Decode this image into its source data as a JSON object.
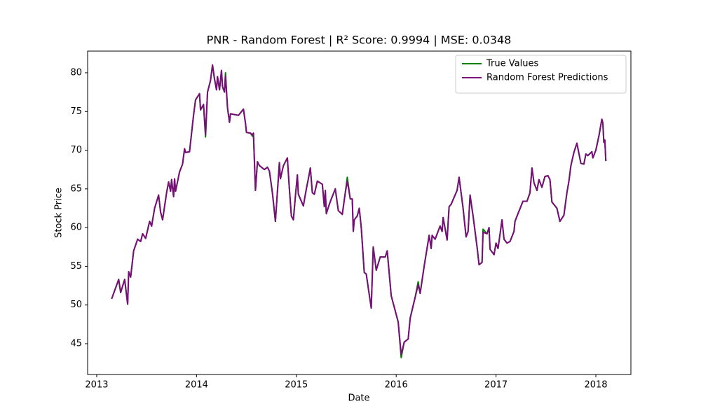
{
  "chart_data": {
    "type": "line",
    "title": "PNR - Random Forest | R² Score: 0.9994 | MSE: 0.0348",
    "x_label": "Date",
    "y_label": "Stock Price",
    "x": [
      2013.15,
      2013.22,
      2013.24,
      2013.28,
      2013.31,
      2013.32,
      2013.34,
      2013.37,
      2013.41,
      2013.44,
      2013.46,
      2013.49,
      2013.53,
      2013.55,
      2013.58,
      2013.62,
      2013.64,
      2013.66,
      2013.7,
      2013.72,
      2013.74,
      2013.75,
      2013.77,
      2013.78,
      2013.79,
      2013.83,
      2013.86,
      2013.88,
      2013.89,
      2013.93,
      2013.94,
      2013.97,
      2013.99,
      2014.03,
      2014.04,
      2014.07,
      2014.09,
      2014.11,
      2014.14,
      2014.16,
      2014.18,
      2014.2,
      2014.21,
      2014.23,
      2014.25,
      2014.26,
      2014.28,
      2014.29,
      2014.31,
      2014.33,
      2014.34,
      2014.42,
      2014.47,
      2014.49,
      2014.5,
      2014.54,
      2014.56,
      2014.57,
      2014.59,
      2014.61,
      2014.63,
      2014.68,
      2014.71,
      2014.73,
      2014.76,
      2014.79,
      2014.83,
      2014.84,
      2014.87,
      2014.91,
      2014.93,
      2014.95,
      2014.97,
      2014.99,
      2015.01,
      2015.02,
      2015.07,
      2015.1,
      2015.12,
      2015.14,
      2015.16,
      2015.18,
      2015.21,
      2015.26,
      2015.28,
      2015.29,
      2015.3,
      2015.33,
      2015.35,
      2015.39,
      2015.42,
      2015.46,
      2015.49,
      2015.51,
      2015.54,
      2015.56,
      2015.57,
      2015.58,
      2015.61,
      2015.63,
      2015.65,
      2015.68,
      2015.7,
      2015.75,
      2015.77,
      2015.8,
      2015.84,
      2015.89,
      2015.91,
      2015.95,
      2016.02,
      2016.05,
      2016.08,
      2016.12,
      2016.14,
      2016.19,
      2016.22,
      2016.24,
      2016.28,
      2016.33,
      2016.35,
      2016.36,
      2016.39,
      2016.44,
      2016.46,
      2016.47,
      2016.51,
      2016.53,
      2016.55,
      2016.61,
      2016.63,
      2016.67,
      2016.7,
      2016.72,
      2016.74,
      2016.77,
      2016.81,
      2016.83,
      2016.86,
      2016.87,
      2016.91,
      2016.93,
      2016.94,
      2016.98,
      2017.0,
      2017.02,
      2017.06,
      2017.08,
      2017.11,
      2017.14,
      2017.18,
      2017.19,
      2017.22,
      2017.27,
      2017.31,
      2017.34,
      2017.36,
      2017.38,
      2017.41,
      2017.43,
      2017.46,
      2017.49,
      2017.52,
      2017.54,
      2017.56,
      2017.61,
      2017.64,
      2017.68,
      2017.71,
      2017.73,
      2017.75,
      2017.78,
      2017.81,
      2017.85,
      2017.88,
      2017.9,
      2017.92,
      2017.96,
      2017.97,
      2018.0,
      2018.03,
      2018.06,
      2018.07,
      2018.08,
      2018.09,
      2018.1
    ],
    "series": [
      {
        "name": "True Values",
        "color": "#008000",
        "values": [
          50.8,
          53.3,
          51.6,
          53.3,
          50.1,
          54.3,
          53.6,
          57,
          58.5,
          58.2,
          59.2,
          58.6,
          60.8,
          60.2,
          62.5,
          64.2,
          62,
          61,
          64.5,
          65.9,
          64.7,
          66.2,
          64,
          66.3,
          64.7,
          67.2,
          68.2,
          70.2,
          69.7,
          69.8,
          71,
          74.5,
          76.5,
          77.3,
          75.2,
          75.9,
          71.7,
          77.5,
          79,
          81,
          79.2,
          77.8,
          79.5,
          77.8,
          80.3,
          78.2,
          77.5,
          80,
          75.5,
          73.6,
          74.7,
          74.5,
          75.3,
          73.5,
          72.3,
          72.2,
          71.8,
          72.2,
          64.8,
          68.5,
          68,
          67.5,
          67.8,
          67.3,
          64.5,
          60.8,
          68.4,
          66.3,
          68,
          69,
          65,
          61.5,
          61,
          64,
          66.8,
          64.3,
          62.8,
          65,
          66.3,
          67.7,
          64.5,
          64.3,
          66,
          65.6,
          62.7,
          64.8,
          61.8,
          63,
          63.7,
          65,
          62.2,
          61.7,
          64.5,
          66.5,
          63.7,
          63.7,
          59.5,
          61,
          61.5,
          62.5,
          60,
          54.2,
          54,
          49.6,
          57.5,
          54.5,
          56.2,
          56.2,
          57,
          51.2,
          47.8,
          43.2,
          45.2,
          45.6,
          48.3,
          51,
          53,
          51.5,
          55,
          59,
          57.3,
          59,
          58.5,
          60.2,
          59.5,
          61.3,
          58.4,
          62.7,
          63,
          64.8,
          66.5,
          62.5,
          58.8,
          59.5,
          64.2,
          61.5,
          57.5,
          55.2,
          55.5,
          59.8,
          59.2,
          60,
          57.2,
          56.5,
          58,
          57.3,
          61,
          58.5,
          58,
          58.2,
          59.5,
          60.8,
          61.8,
          63.4,
          63.4,
          64.5,
          67.7,
          65.8,
          64.8,
          66.2,
          65.2,
          66.6,
          66.7,
          66.2,
          63.3,
          62.5,
          60.8,
          61.6,
          64.5,
          66,
          68,
          69.7,
          70.9,
          68.3,
          68.2,
          69.5,
          69.3,
          69.8,
          69,
          70,
          71.8,
          74,
          73.5,
          71,
          71.3,
          68.6
        ]
      },
      {
        "name": "Random Forest Predictions",
        "color": "#7b0d7b",
        "values": [
          50.8,
          53.3,
          51.6,
          53.3,
          50.1,
          54.3,
          53.6,
          57,
          58.5,
          58.2,
          59.2,
          58.6,
          60.8,
          60.2,
          62.5,
          64.2,
          62,
          61,
          64.5,
          65.9,
          64.7,
          66.2,
          64,
          66.3,
          64.7,
          67.2,
          68.2,
          70.2,
          69.7,
          69.8,
          71,
          74.5,
          76.5,
          77.3,
          75.2,
          75.9,
          72.0,
          77.5,
          79,
          81,
          79.2,
          77.8,
          79.5,
          77.8,
          80.3,
          78.2,
          77.5,
          79.6,
          75.5,
          73.6,
          74.7,
          74.5,
          75.3,
          73.5,
          72.3,
          72.2,
          72.0,
          72.2,
          64.8,
          68.5,
          68,
          67.5,
          67.8,
          67.3,
          64.5,
          60.8,
          68.4,
          66.3,
          68,
          69,
          65,
          61.5,
          61,
          64,
          66.8,
          64.3,
          62.8,
          65,
          66.3,
          67.7,
          64.5,
          64.3,
          66,
          65.6,
          62.7,
          64.8,
          61.8,
          63,
          63.7,
          65,
          62.2,
          61.7,
          64.5,
          66.0,
          63.7,
          63.7,
          59.5,
          61,
          61.5,
          62.5,
          60,
          54.2,
          54,
          49.6,
          57.5,
          54.5,
          56.2,
          56.2,
          57,
          51.2,
          47.8,
          43.6,
          45.2,
          45.6,
          48.3,
          51,
          52.6,
          51.5,
          55,
          59,
          57.3,
          59,
          58.5,
          60.2,
          59.5,
          61.3,
          58.4,
          62.7,
          63,
          64.8,
          66.5,
          62.5,
          58.8,
          59.5,
          64.2,
          61.5,
          57.5,
          55.2,
          55.5,
          59.4,
          59.2,
          60,
          57.2,
          56.5,
          58,
          57.3,
          61,
          58.5,
          58,
          58.2,
          59.5,
          60.8,
          61.8,
          63.4,
          63.4,
          64.5,
          67.7,
          65.8,
          64.8,
          66.2,
          65.2,
          66.6,
          66.7,
          66.2,
          63.3,
          62.5,
          60.8,
          61.6,
          64.5,
          66,
          68,
          69.7,
          70.9,
          68.3,
          68.2,
          69.5,
          69.3,
          69.8,
          69,
          70,
          71.8,
          74,
          73.5,
          71,
          71.3,
          68.6
        ]
      }
    ],
    "xlim": [
      2012.909,
      2018.351
    ],
    "xticks": [
      2013,
      2014,
      2015,
      2016,
      2017,
      2018
    ],
    "ylim": [
      41.02,
      82.8
    ],
    "yticks": [
      45,
      50,
      55,
      60,
      65,
      70,
      75,
      80
    ],
    "grid": false,
    "legend": "upper right"
  }
}
